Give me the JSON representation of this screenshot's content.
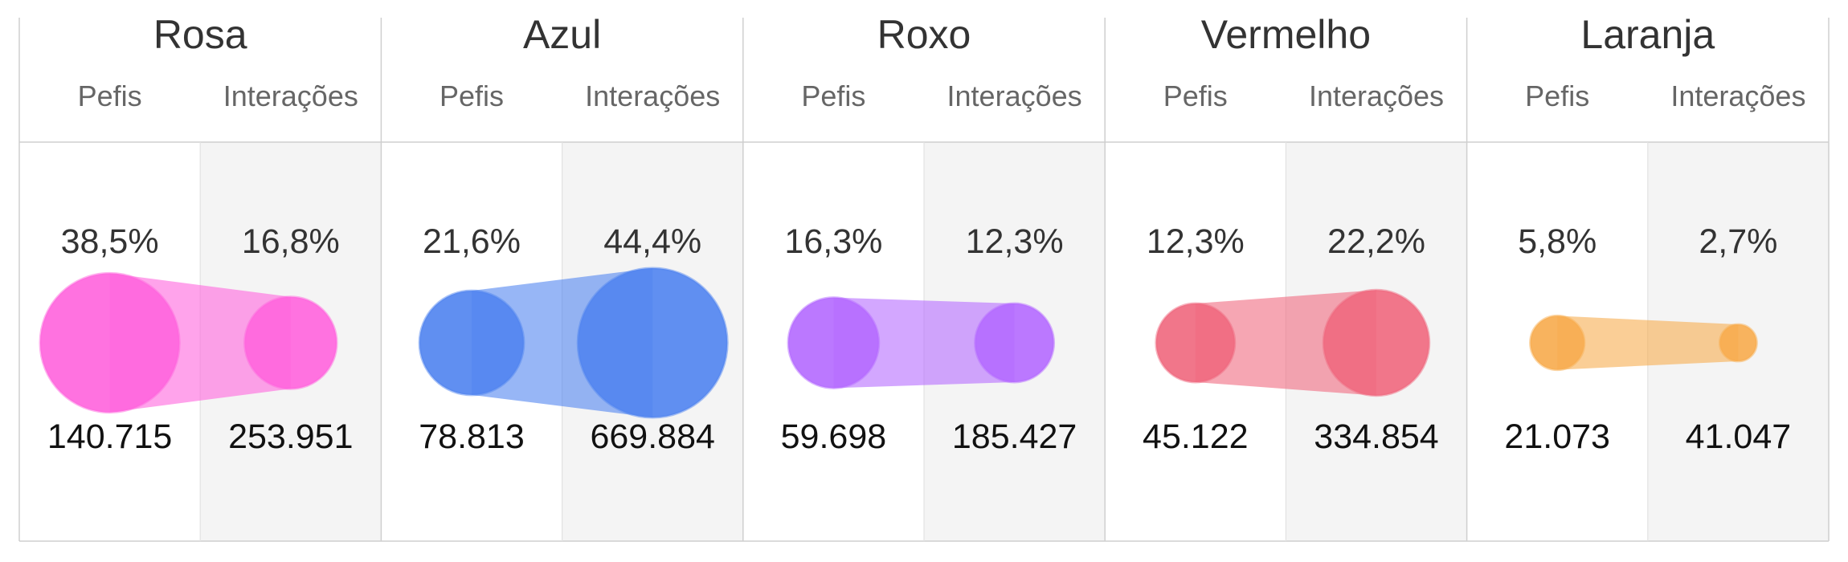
{
  "chart_data": {
    "type": "bubble-comparison",
    "columns": [
      "Pefis",
      "Interações"
    ],
    "groups": [
      {
        "name": "Rosa",
        "color": "#ff66dd",
        "pefis": {
          "value": 140715,
          "value_label": "140.715",
          "pct": 38.5,
          "pct_label": "38,5%"
        },
        "interacoes": {
          "value": 253951,
          "value_label": "253.951",
          "pct": 16.8,
          "pct_label": "16,8%"
        }
      },
      {
        "name": "Azul",
        "color": "#5285f0",
        "pefis": {
          "value": 78813,
          "value_label": "78.813",
          "pct": 21.6,
          "pct_label": "21,6%"
        },
        "interacoes": {
          "value": 669884,
          "value_label": "669.884",
          "pct": 44.4,
          "pct_label": "44,4%"
        }
      },
      {
        "name": "Roxo",
        "color": "#b56cff",
        "pefis": {
          "value": 59698,
          "value_label": "59.698",
          "pct": 16.3,
          "pct_label": "16,3%"
        },
        "interacoes": {
          "value": 185427,
          "value_label": "185.427",
          "pct": 12.3,
          "pct_label": "12,3%"
        }
      },
      {
        "name": "Vermelho",
        "color": "#f06a80",
        "pefis": {
          "value": 45122,
          "value_label": "45.122",
          "pct": 12.3,
          "pct_label": "12,3%"
        },
        "interacoes": {
          "value": 334854,
          "value_label": "334.854",
          "pct": 22.2,
          "pct_label": "22,2%"
        }
      },
      {
        "name": "Laranja",
        "color": "#f7ad50",
        "pefis": {
          "value": 21073,
          "value_label": "21.073",
          "pct": 5.8,
          "pct_label": "5,8%"
        },
        "interacoes": {
          "value": 41047,
          "value_label": "41.047",
          "pct": 2.7,
          "pct_label": "2,7%"
        }
      }
    ]
  }
}
